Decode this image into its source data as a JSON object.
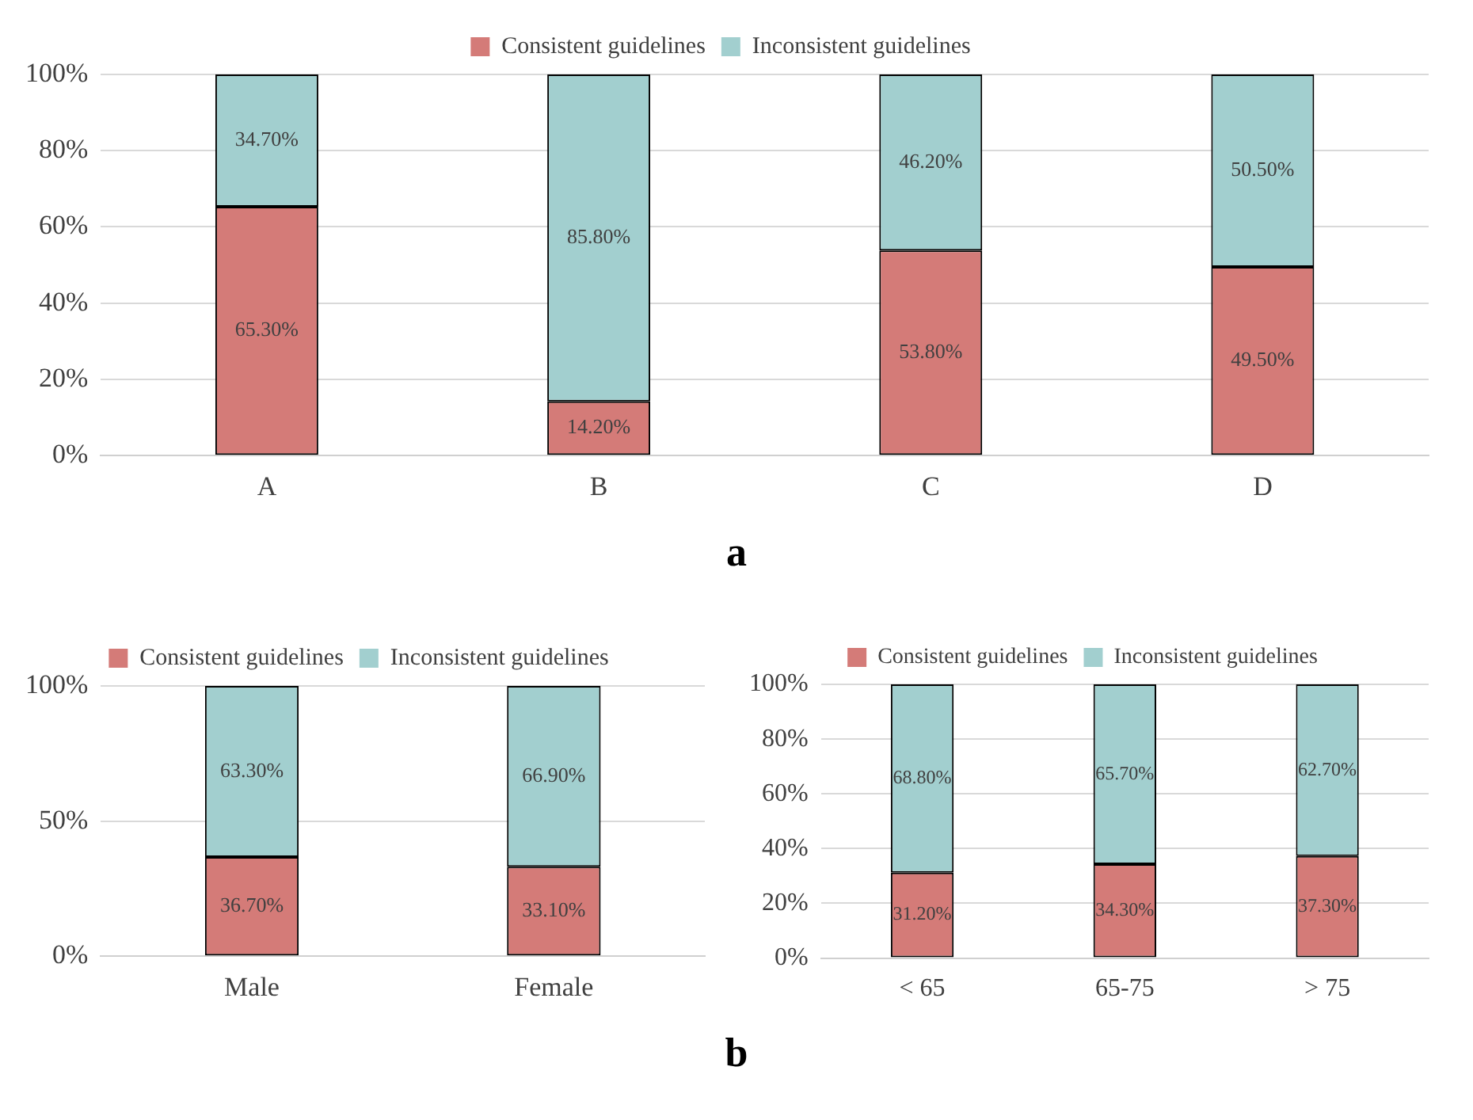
{
  "chart_data": [
    {
      "type": "bar",
      "stacked": true,
      "categories": [
        "A",
        "B",
        "C",
        "D"
      ],
      "series": [
        {
          "name": "Consistent guidelines",
          "color": "#d47b78",
          "values": [
            65.3,
            14.2,
            53.8,
            49.5
          ],
          "value_labels": [
            "65.30%",
            "14.20%",
            "53.80%",
            "49.50%"
          ]
        },
        {
          "name": "Inconsistent guidelines",
          "color": "#a2cfcf",
          "values": [
            34.7,
            85.8,
            46.2,
            50.5
          ],
          "value_labels": [
            "34.70%",
            "85.80%",
            "46.20%",
            "50.50%"
          ]
        }
      ],
      "ylim": [
        0,
        100
      ],
      "yticks": [
        {
          "value": 0,
          "label": "0%"
        },
        {
          "value": 20,
          "label": "20%"
        },
        {
          "value": 40,
          "label": "40%"
        },
        {
          "value": 60,
          "label": "60%"
        },
        {
          "value": 80,
          "label": "80%"
        },
        {
          "value": 100,
          "label": "100%"
        }
      ],
      "grid": "y",
      "legend": "top",
      "annotations": [
        "a"
      ]
    },
    {
      "type": "bar",
      "stacked": true,
      "categories": [
        "Male",
        "Female"
      ],
      "series": [
        {
          "name": "Consistent guidelines",
          "color": "#d47b78",
          "values": [
            36.7,
            33.1
          ],
          "value_labels": [
            "36.70%",
            "33.10%"
          ]
        },
        {
          "name": "Inconsistent guidelines",
          "color": "#a2cfcf",
          "values": [
            63.3,
            66.9
          ],
          "value_labels": [
            "63.30%",
            "66.90%"
          ]
        }
      ],
      "ylim": [
        0,
        100
      ],
      "yticks": [
        {
          "value": 0,
          "label": "0%"
        },
        {
          "value": 50,
          "label": "50%"
        },
        {
          "value": 100,
          "label": "100%"
        }
      ],
      "grid": "y",
      "legend": "top",
      "annotations": [
        "b"
      ]
    },
    {
      "type": "bar",
      "stacked": true,
      "categories": [
        "< 65",
        "65-75",
        "> 75"
      ],
      "series": [
        {
          "name": "Consistent guidelines",
          "color": "#d47b78",
          "values": [
            31.2,
            34.3,
            37.3
          ],
          "value_labels": [
            "31.20%",
            "34.30%",
            "37.30%"
          ]
        },
        {
          "name": "Inconsistent guidelines",
          "color": "#a2cfcf",
          "values": [
            68.8,
            65.7,
            62.7
          ],
          "value_labels": [
            "68.80%",
            "65.70%",
            "62.70%"
          ]
        }
      ],
      "ylim": [
        0,
        100
      ],
      "yticks": [
        {
          "value": 0,
          "label": "0%"
        },
        {
          "value": 20,
          "label": "20%"
        },
        {
          "value": 40,
          "label": "40%"
        },
        {
          "value": 60,
          "label": "60%"
        },
        {
          "value": 80,
          "label": "80%"
        },
        {
          "value": 100,
          "label": "100%"
        }
      ],
      "grid": "y",
      "legend": "top"
    }
  ]
}
